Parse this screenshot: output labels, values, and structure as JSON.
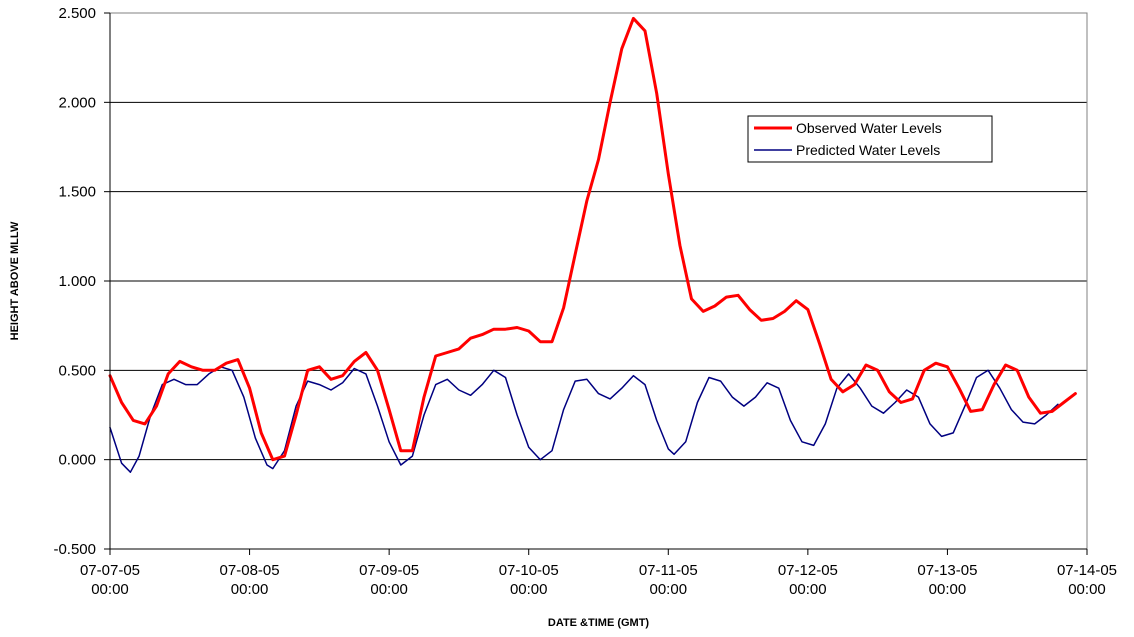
{
  "chart_data": {
    "type": "line",
    "title": "",
    "xlabel": "DATE &TIME (GMT)",
    "ylabel": "HEIGHT ABOVE MLLW",
    "ylim": [
      -0.5,
      2.5
    ],
    "xlim": [
      "07-07-05 00:00",
      "07-14-05 00:00"
    ],
    "y_ticks": [
      "-0.500",
      "0.000",
      "0.500",
      "1.000",
      "1.500",
      "2.000",
      "2.500"
    ],
    "x_ticks": [
      {
        "date": "07-07-05",
        "time": "00:00"
      },
      {
        "date": "07-08-05",
        "time": "00:00"
      },
      {
        "date": "07-09-05",
        "time": "00:00"
      },
      {
        "date": "07-10-05",
        "time": "00:00"
      },
      {
        "date": "07-11-05",
        "time": "00:00"
      },
      {
        "date": "07-12-05",
        "time": "00:00"
      },
      {
        "date": "07-13-05",
        "time": "00:00"
      },
      {
        "date": "07-14-05",
        "time": "00:00"
      }
    ],
    "grid": "horizontal",
    "legend_position": "upper-right",
    "series": [
      {
        "name": "Observed Water Levels",
        "color": "#ff0000",
        "points": [
          [
            "07-07-05 00:00",
            0.47
          ],
          [
            "07-07-05 02:00",
            0.32
          ],
          [
            "07-07-05 04:00",
            0.22
          ],
          [
            "07-07-05 06:00",
            0.2
          ],
          [
            "07-07-05 08:00",
            0.3
          ],
          [
            "07-07-05 10:00",
            0.48
          ],
          [
            "07-07-05 12:00",
            0.55
          ],
          [
            "07-07-05 14:00",
            0.52
          ],
          [
            "07-07-05 16:00",
            0.5
          ],
          [
            "07-07-05 18:00",
            0.5
          ],
          [
            "07-07-05 20:00",
            0.54
          ],
          [
            "07-07-05 22:00",
            0.56
          ],
          [
            "07-08-05 00:00",
            0.4
          ],
          [
            "07-08-05 02:00",
            0.15
          ],
          [
            "07-08-05 04:00",
            0.0
          ],
          [
            "07-08-05 06:00",
            0.02
          ],
          [
            "07-08-05 08:00",
            0.25
          ],
          [
            "07-08-05 10:00",
            0.5
          ],
          [
            "07-08-05 12:00",
            0.52
          ],
          [
            "07-08-05 14:00",
            0.45
          ],
          [
            "07-08-05 16:00",
            0.47
          ],
          [
            "07-08-05 18:00",
            0.55
          ],
          [
            "07-08-05 20:00",
            0.6
          ],
          [
            "07-08-05 22:00",
            0.5
          ],
          [
            "07-09-05 00:00",
            0.28
          ],
          [
            "07-09-05 02:00",
            0.05
          ],
          [
            "07-09-05 04:00",
            0.05
          ],
          [
            "07-09-05 06:00",
            0.35
          ],
          [
            "07-09-05 08:00",
            0.58
          ],
          [
            "07-09-05 10:00",
            0.6
          ],
          [
            "07-09-05 12:00",
            0.62
          ],
          [
            "07-09-05 14:00",
            0.68
          ],
          [
            "07-09-05 16:00",
            0.7
          ],
          [
            "07-09-05 18:00",
            0.73
          ],
          [
            "07-09-05 20:00",
            0.73
          ],
          [
            "07-09-05 22:00",
            0.74
          ],
          [
            "07-10-05 00:00",
            0.72
          ],
          [
            "07-10-05 02:00",
            0.66
          ],
          [
            "07-10-05 04:00",
            0.66
          ],
          [
            "07-10-05 06:00",
            0.85
          ],
          [
            "07-10-05 08:00",
            1.15
          ],
          [
            "07-10-05 10:00",
            1.45
          ],
          [
            "07-10-05 12:00",
            1.68
          ],
          [
            "07-10-05 14:00",
            2.0
          ],
          [
            "07-10-05 16:00",
            2.3
          ],
          [
            "07-10-05 18:00",
            2.47
          ],
          [
            "07-10-05 20:00",
            2.4
          ],
          [
            "07-10-05 22:00",
            2.05
          ],
          [
            "07-11-05 00:00",
            1.6
          ],
          [
            "07-11-05 02:00",
            1.2
          ],
          [
            "07-11-05 04:00",
            0.9
          ],
          [
            "07-11-05 06:00",
            0.83
          ],
          [
            "07-11-05 08:00",
            0.86
          ],
          [
            "07-11-05 10:00",
            0.91
          ],
          [
            "07-11-05 12:00",
            0.92
          ],
          [
            "07-11-05 14:00",
            0.84
          ],
          [
            "07-11-05 16:00",
            0.78
          ],
          [
            "07-11-05 18:00",
            0.79
          ],
          [
            "07-11-05 20:00",
            0.83
          ],
          [
            "07-11-05 22:00",
            0.89
          ],
          [
            "07-12-05 00:00",
            0.84
          ],
          [
            "07-12-05 02:00",
            0.65
          ],
          [
            "07-12-05 04:00",
            0.45
          ],
          [
            "07-12-05 06:00",
            0.38
          ],
          [
            "07-12-05 08:00",
            0.42
          ],
          [
            "07-12-05 10:00",
            0.53
          ],
          [
            "07-12-05 12:00",
            0.5
          ],
          [
            "07-12-05 14:00",
            0.38
          ],
          [
            "07-12-05 16:00",
            0.32
          ],
          [
            "07-12-05 18:00",
            0.34
          ],
          [
            "07-12-05 20:00",
            0.5
          ],
          [
            "07-12-05 22:00",
            0.54
          ],
          [
            "07-13-05 00:00",
            0.52
          ],
          [
            "07-13-05 02:00",
            0.4
          ],
          [
            "07-13-05 04:00",
            0.27
          ],
          [
            "07-13-05 06:00",
            0.28
          ],
          [
            "07-13-05 08:00",
            0.42
          ],
          [
            "07-13-05 10:00",
            0.53
          ],
          [
            "07-13-05 12:00",
            0.5
          ],
          [
            "07-13-05 14:00",
            0.35
          ],
          [
            "07-13-05 16:00",
            0.26
          ],
          [
            "07-13-05 18:00",
            0.27
          ],
          [
            "07-13-05 20:00",
            0.32
          ],
          [
            "07-13-05 22:00",
            0.37
          ]
        ]
      },
      {
        "name": "Predicted Water Levels",
        "color": "#000080",
        "points": [
          [
            "07-07-05 00:00",
            0.18
          ],
          [
            "07-07-05 02:00",
            -0.02
          ],
          [
            "07-07-05 03:30",
            -0.07
          ],
          [
            "07-07-05 05:00",
            0.02
          ],
          [
            "07-07-05 07:00",
            0.25
          ],
          [
            "07-07-05 09:00",
            0.42
          ],
          [
            "07-07-05 11:00",
            0.45
          ],
          [
            "07-07-05 13:00",
            0.42
          ],
          [
            "07-07-05 15:00",
            0.42
          ],
          [
            "07-07-05 17:00",
            0.48
          ],
          [
            "07-07-05 19:00",
            0.52
          ],
          [
            "07-07-05 21:00",
            0.5
          ],
          [
            "07-07-05 23:00",
            0.35
          ],
          [
            "07-08-05 01:00",
            0.12
          ],
          [
            "07-08-05 03:00",
            -0.03
          ],
          [
            "07-08-05 04:00",
            -0.05
          ],
          [
            "07-08-05 06:00",
            0.05
          ],
          [
            "07-08-05 08:00",
            0.3
          ],
          [
            "07-08-05 10:00",
            0.44
          ],
          [
            "07-08-05 12:00",
            0.42
          ],
          [
            "07-08-05 14:00",
            0.39
          ],
          [
            "07-08-05 16:00",
            0.43
          ],
          [
            "07-08-05 18:00",
            0.51
          ],
          [
            "07-08-05 20:00",
            0.48
          ],
          [
            "07-08-05 22:00",
            0.3
          ],
          [
            "07-09-05 00:00",
            0.1
          ],
          [
            "07-09-05 02:00",
            -0.03
          ],
          [
            "07-09-05 04:00",
            0.02
          ],
          [
            "07-09-05 06:00",
            0.25
          ],
          [
            "07-09-05 08:00",
            0.42
          ],
          [
            "07-09-05 10:00",
            0.45
          ],
          [
            "07-09-05 12:00",
            0.39
          ],
          [
            "07-09-05 14:00",
            0.36
          ],
          [
            "07-09-05 16:00",
            0.42
          ],
          [
            "07-09-05 18:00",
            0.5
          ],
          [
            "07-09-05 20:00",
            0.46
          ],
          [
            "07-09-05 22:00",
            0.25
          ],
          [
            "07-10-05 00:00",
            0.07
          ],
          [
            "07-10-05 02:00",
            0.0
          ],
          [
            "07-10-05 04:00",
            0.05
          ],
          [
            "07-10-05 06:00",
            0.28
          ],
          [
            "07-10-05 08:00",
            0.44
          ],
          [
            "07-10-05 10:00",
            0.45
          ],
          [
            "07-10-05 12:00",
            0.37
          ],
          [
            "07-10-05 14:00",
            0.34
          ],
          [
            "07-10-05 16:00",
            0.4
          ],
          [
            "07-10-05 18:00",
            0.47
          ],
          [
            "07-10-05 20:00",
            0.42
          ],
          [
            "07-10-05 22:00",
            0.22
          ],
          [
            "07-11-05 00:00",
            0.06
          ],
          [
            "07-11-05 01:00",
            0.03
          ],
          [
            "07-11-05 03:00",
            0.1
          ],
          [
            "07-11-05 05:00",
            0.32
          ],
          [
            "07-11-05 07:00",
            0.46
          ],
          [
            "07-11-05 09:00",
            0.44
          ],
          [
            "07-11-05 11:00",
            0.35
          ],
          [
            "07-11-05 13:00",
            0.3
          ],
          [
            "07-11-05 15:00",
            0.35
          ],
          [
            "07-11-05 17:00",
            0.43
          ],
          [
            "07-11-05 19:00",
            0.4
          ],
          [
            "07-11-05 21:00",
            0.22
          ],
          [
            "07-11-05 23:00",
            0.1
          ],
          [
            "07-12-05 01:00",
            0.08
          ],
          [
            "07-12-05 03:00",
            0.2
          ],
          [
            "07-12-05 05:00",
            0.4
          ],
          [
            "07-12-05 07:00",
            0.48
          ],
          [
            "07-12-05 09:00",
            0.4
          ],
          [
            "07-12-05 11:00",
            0.3
          ],
          [
            "07-12-05 13:00",
            0.26
          ],
          [
            "07-12-05 15:00",
            0.32
          ],
          [
            "07-12-05 17:00",
            0.39
          ],
          [
            "07-12-05 19:00",
            0.35
          ],
          [
            "07-12-05 21:00",
            0.2
          ],
          [
            "07-12-05 23:00",
            0.13
          ],
          [
            "07-13-05 01:00",
            0.15
          ],
          [
            "07-13-05 03:00",
            0.3
          ],
          [
            "07-13-05 05:00",
            0.46
          ],
          [
            "07-13-05 07:00",
            0.5
          ],
          [
            "07-13-05 09:00",
            0.4
          ],
          [
            "07-13-05 11:00",
            0.28
          ],
          [
            "07-13-05 13:00",
            0.21
          ],
          [
            "07-13-05 15:00",
            0.2
          ],
          [
            "07-13-05 17:00",
            0.25
          ],
          [
            "07-13-05 19:00",
            0.31
          ]
        ]
      }
    ]
  }
}
